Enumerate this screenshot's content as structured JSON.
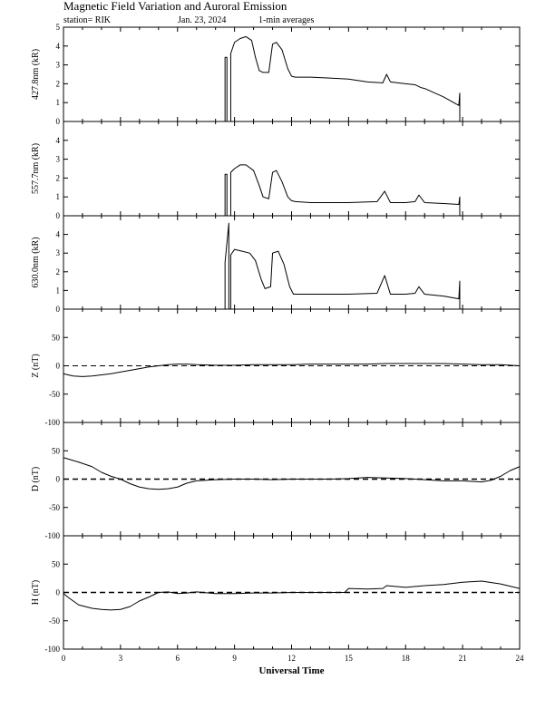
{
  "header": {
    "title": "Magnetic Field Variation and Auroral Emission",
    "station": "station= RIK",
    "date": "Jan. 23, 2024",
    "averaging": "1-min averages"
  },
  "chart_data": [
    {
      "type": "line",
      "ylabel": "427.8nm (kR)",
      "xlim": [
        0,
        24
      ],
      "ylim": [
        0,
        5
      ],
      "yticks": [
        0,
        1,
        2,
        3,
        4,
        5
      ],
      "x": [
        0,
        8.5,
        8.5,
        8.6,
        8.6,
        8.8,
        8.8,
        9.0,
        9.3,
        9.6,
        9.9,
        10.1,
        10.3,
        10.5,
        10.8,
        11.0,
        11.2,
        11.5,
        11.8,
        12.0,
        12.2,
        13,
        14,
        15,
        16,
        16.8,
        17.0,
        17.2,
        18,
        18.5,
        18.8,
        19.0,
        20,
        20.8,
        20.85,
        20.85,
        24
      ],
      "series": [
        {
          "values": [
            0,
            0,
            3.4,
            3.4,
            0,
            0,
            3.6,
            4.2,
            4.4,
            4.5,
            4.3,
            3.4,
            2.7,
            2.6,
            2.6,
            4.1,
            4.2,
            3.8,
            2.8,
            2.4,
            2.35,
            2.35,
            2.3,
            2.25,
            2.1,
            2.05,
            2.5,
            2.1,
            2.0,
            1.95,
            1.8,
            1.75,
            1.3,
            0.85,
            1.5,
            0,
            0
          ]
        }
      ]
    },
    {
      "type": "line",
      "ylabel": "557.7nm (kR)",
      "xlim": [
        0,
        24
      ],
      "ylim": [
        0,
        5
      ],
      "yticks": [
        0,
        1,
        2,
        3,
        4
      ],
      "x": [
        0,
        8.5,
        8.5,
        8.6,
        8.6,
        8.8,
        8.8,
        9.0,
        9.3,
        9.6,
        10.0,
        10.3,
        10.5,
        10.8,
        11.0,
        11.2,
        11.5,
        11.8,
        12.0,
        12.2,
        13,
        15,
        16.5,
        16.9,
        17.2,
        18,
        18.5,
        18.7,
        19.0,
        20,
        20.8,
        20.85,
        20.85,
        24
      ],
      "series": [
        {
          "values": [
            0,
            0,
            2.2,
            2.2,
            0,
            0,
            2.3,
            2.5,
            2.7,
            2.7,
            2.4,
            1.6,
            1.0,
            0.9,
            2.3,
            2.4,
            1.8,
            1.0,
            0.8,
            0.75,
            0.7,
            0.7,
            0.75,
            1.3,
            0.7,
            0.7,
            0.75,
            1.1,
            0.7,
            0.65,
            0.6,
            1.0,
            0,
            0
          ]
        }
      ]
    },
    {
      "type": "line",
      "ylabel": "630.0nm (kR)",
      "xlim": [
        0,
        24
      ],
      "ylim": [
        0,
        5
      ],
      "yticks": [
        0,
        1,
        2,
        3,
        4
      ],
      "x": [
        0,
        8.5,
        8.5,
        8.7,
        8.7,
        8.8,
        8.8,
        9.0,
        9.4,
        9.8,
        10.1,
        10.4,
        10.6,
        10.9,
        11.0,
        11.3,
        11.6,
        11.9,
        12.1,
        12.3,
        13,
        15,
        16.5,
        16.9,
        17.2,
        18,
        18.5,
        18.7,
        19.0,
        20,
        20.8,
        20.85,
        20.85,
        24
      ],
      "series": [
        {
          "values": [
            0,
            0,
            2.5,
            4.6,
            0,
            0,
            2.9,
            3.2,
            3.1,
            3.0,
            2.6,
            1.6,
            1.1,
            1.2,
            3.0,
            3.1,
            2.4,
            1.2,
            0.8,
            0.8,
            0.8,
            0.8,
            0.85,
            1.8,
            0.8,
            0.8,
            0.85,
            1.2,
            0.8,
            0.7,
            0.55,
            1.5,
            0,
            0
          ]
        }
      ]
    },
    {
      "type": "line",
      "ylabel": "Z (nT)",
      "xlim": [
        0,
        24
      ],
      "ylim": [
        -100,
        100
      ],
      "yticks": [
        -100,
        -50,
        0,
        50
      ],
      "zero_line": true,
      "x": [
        0,
        0.5,
        1,
        1.5,
        2,
        2.5,
        3,
        3.5,
        4,
        4.5,
        5,
        5.5,
        6,
        6.5,
        7,
        8,
        9,
        10,
        11,
        12,
        13,
        14,
        15,
        16,
        17,
        18,
        19,
        20,
        21,
        22,
        23,
        24
      ],
      "series": [
        {
          "values": [
            -14,
            -18,
            -19,
            -18,
            -16,
            -14,
            -11,
            -8,
            -5,
            -2,
            0,
            2,
            3,
            3,
            2,
            1,
            1,
            2,
            2,
            2,
            3,
            3,
            3,
            3,
            4,
            4,
            4,
            4,
            3,
            2,
            2,
            0
          ]
        }
      ]
    },
    {
      "type": "line",
      "ylabel": "D (nT)",
      "xlim": [
        0,
        24
      ],
      "ylim": [
        -100,
        100
      ],
      "yticks": [
        -100,
        -50,
        0,
        50
      ],
      "zero_line": true,
      "x": [
        0,
        0.3,
        0.8,
        1.5,
        2,
        2.5,
        3,
        3.5,
        4,
        4.5,
        5,
        5.5,
        6,
        6.5,
        7,
        8,
        9,
        10,
        11,
        12,
        13,
        14,
        15,
        16,
        17,
        18,
        19,
        20,
        21,
        22,
        22.5,
        23,
        23.5,
        24
      ],
      "series": [
        {
          "values": [
            38,
            35,
            30,
            22,
            12,
            5,
            0,
            -8,
            -14,
            -17,
            -18,
            -17,
            -14,
            -7,
            -3,
            -1,
            0,
            0,
            -1,
            0,
            0,
            0,
            1,
            3,
            2,
            1,
            -1,
            -3,
            -3,
            -5,
            -2,
            5,
            15,
            22
          ]
        }
      ]
    },
    {
      "type": "line",
      "ylabel": "H (nT)",
      "xlim": [
        0,
        24
      ],
      "ylim": [
        -100,
        100
      ],
      "yticks": [
        -100,
        -50,
        0,
        50
      ],
      "zero_line": true,
      "x": [
        0,
        0.3,
        0.8,
        1.5,
        2,
        2.5,
        3,
        3.5,
        4,
        4.5,
        5,
        5.5,
        6,
        6.5,
        7,
        8,
        9,
        10,
        11,
        12,
        13,
        14,
        14.8,
        15,
        16,
        16.8,
        17,
        18,
        19,
        20,
        21,
        22,
        23,
        24
      ],
      "series": [
        {
          "values": [
            -2,
            -10,
            -22,
            -28,
            -30,
            -31,
            -30,
            -25,
            -15,
            -8,
            0,
            1,
            -2,
            -1,
            1,
            -2,
            -2,
            -1,
            -1,
            0,
            0,
            0,
            0,
            7,
            6,
            7,
            12,
            9,
            12,
            14,
            18,
            20,
            15,
            7
          ]
        }
      ]
    }
  ],
  "x_axis": {
    "label": "Universal Time",
    "ticks": [
      0,
      3,
      6,
      9,
      12,
      15,
      18,
      21,
      24
    ]
  }
}
